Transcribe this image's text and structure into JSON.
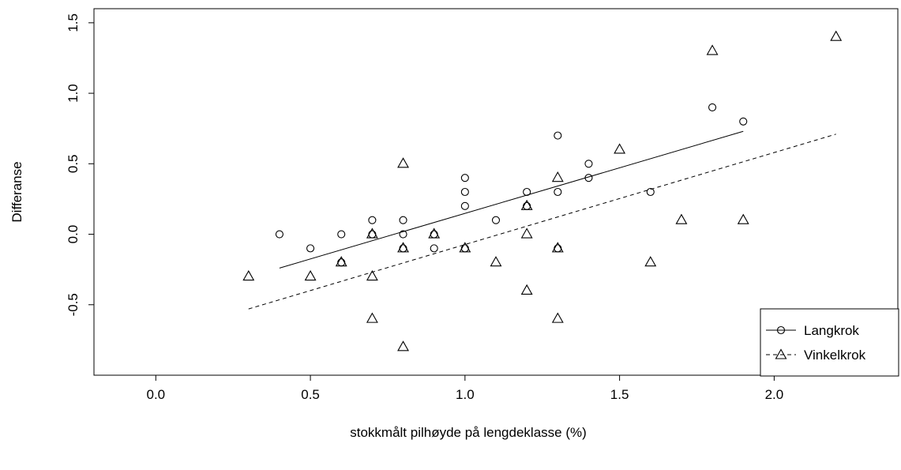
{
  "chart_data": {
    "type": "scatter",
    "title": "",
    "xlabel": "stokkmålt pilhøyde på lengdeklasse (%)",
    "ylabel": "Differanse",
    "xlim": [
      -0.2,
      2.4
    ],
    "ylim": [
      -1.0,
      1.6
    ],
    "x_ticks": [
      0.0,
      0.5,
      1.0,
      1.5,
      2.0
    ],
    "x_tick_labels": [
      "0.0",
      "0.5",
      "1.0",
      "1.5",
      "2.0"
    ],
    "y_ticks": [
      -0.5,
      0.0,
      0.5,
      1.0,
      1.5
    ],
    "y_tick_labels": [
      "-0.5",
      "0.0",
      "0.5",
      "1.0",
      "1.5"
    ],
    "grid": false,
    "legend_position": "bottom-right",
    "series": [
      {
        "name": "Langkrok",
        "marker": "circle",
        "line_style": "solid",
        "points": [
          [
            0.4,
            0.0
          ],
          [
            0.5,
            -0.1
          ],
          [
            0.6,
            0.0
          ],
          [
            0.6,
            -0.2
          ],
          [
            0.7,
            0.1
          ],
          [
            0.7,
            0.0
          ],
          [
            0.8,
            0.1
          ],
          [
            0.8,
            0.0
          ],
          [
            0.8,
            -0.1
          ],
          [
            0.9,
            0.0
          ],
          [
            0.9,
            -0.1
          ],
          [
            1.0,
            0.4
          ],
          [
            1.0,
            0.3
          ],
          [
            1.0,
            0.2
          ],
          [
            1.0,
            -0.1
          ],
          [
            1.1,
            0.1
          ],
          [
            1.2,
            0.3
          ],
          [
            1.2,
            0.2
          ],
          [
            1.3,
            0.7
          ],
          [
            1.3,
            0.3
          ],
          [
            1.3,
            -0.1
          ],
          [
            1.4,
            0.5
          ],
          [
            1.4,
            0.4
          ],
          [
            1.6,
            0.3
          ],
          [
            1.8,
            0.9
          ],
          [
            1.9,
            0.8
          ]
        ],
        "fit_line": [
          [
            0.4,
            -0.24
          ],
          [
            1.9,
            0.73
          ]
        ]
      },
      {
        "name": "Vinkelkrok",
        "marker": "triangle",
        "line_style": "dashed",
        "points": [
          [
            0.3,
            -0.3
          ],
          [
            0.5,
            -0.3
          ],
          [
            0.6,
            -0.2
          ],
          [
            0.7,
            0.0
          ],
          [
            0.7,
            -0.3
          ],
          [
            0.7,
            -0.6
          ],
          [
            0.8,
            0.5
          ],
          [
            0.8,
            -0.1
          ],
          [
            0.8,
            -0.8
          ],
          [
            0.9,
            0.0
          ],
          [
            1.0,
            -0.1
          ],
          [
            1.1,
            -0.2
          ],
          [
            1.2,
            0.2
          ],
          [
            1.2,
            0.0
          ],
          [
            1.2,
            -0.4
          ],
          [
            1.3,
            0.4
          ],
          [
            1.3,
            -0.1
          ],
          [
            1.3,
            -0.6
          ],
          [
            1.5,
            0.6
          ],
          [
            1.6,
            -0.2
          ],
          [
            1.7,
            0.1
          ],
          [
            1.8,
            1.3
          ],
          [
            1.9,
            0.1
          ],
          [
            2.2,
            1.4
          ]
        ],
        "fit_line": [
          [
            0.3,
            -0.53
          ],
          [
            2.2,
            0.71
          ]
        ]
      }
    ]
  }
}
